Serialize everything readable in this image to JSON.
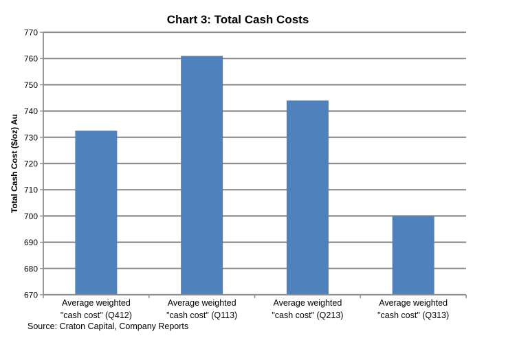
{
  "chart_data": {
    "type": "bar",
    "title": "Chart 3: Total Cash Costs",
    "ylabel": "Total Cash Cost ($/oz) Au",
    "xlabel": "",
    "categories": [
      [
        "Average weighted",
        "\"cash cost\" (Q412)"
      ],
      [
        "Average weighted",
        "\"cash cost\" (Q113)"
      ],
      [
        "Average weighted",
        "\"cash cost\" (Q213)"
      ],
      [
        "Average weighted",
        "\"cash cost\" (Q313)"
      ]
    ],
    "values": [
      732.5,
      761,
      744,
      700
    ],
    "ylim": [
      670,
      770
    ],
    "yticks": [
      670,
      680,
      690,
      700,
      710,
      720,
      730,
      740,
      750,
      760,
      770
    ],
    "grid": true,
    "legend": "none",
    "bar_color": "#4F81BD",
    "grid_color": "#8C8C8C"
  },
  "source": "Source: Craton Capital, Company Reports"
}
